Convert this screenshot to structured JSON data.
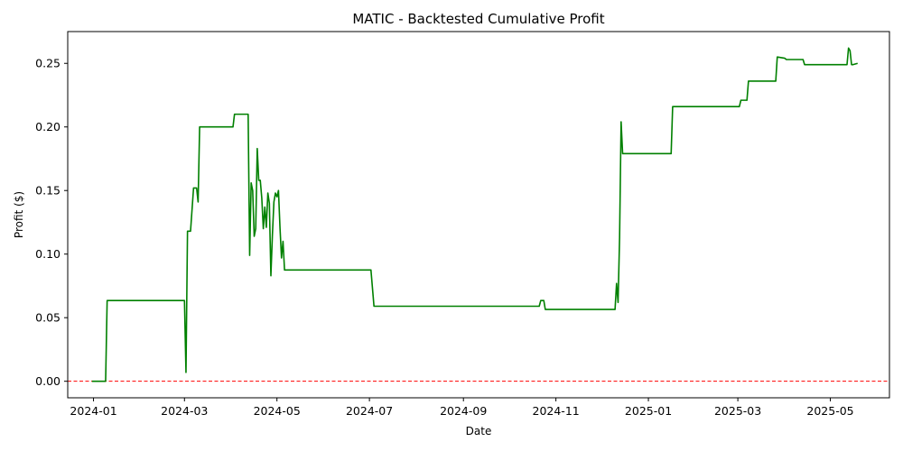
{
  "chart_data": {
    "type": "line",
    "title": "MATIC - Backtested Cumulative Profit",
    "xlabel": "Date",
    "ylabel": "Profit ($)",
    "xlim": [
      "2023-12-15",
      "2025-06-09"
    ],
    "ylim": [
      -0.013,
      0.275
    ],
    "x_ticks": [
      "2024-01",
      "2024-03",
      "2024-05",
      "2024-07",
      "2024-09",
      "2024-11",
      "2025-01",
      "2025-03",
      "2025-05"
    ],
    "y_ticks": [
      "0.00",
      "0.05",
      "0.10",
      "0.15",
      "0.20",
      "0.25"
    ],
    "grid": false,
    "series": [
      {
        "color": "#008000",
        "x": [
          "2023-12-31",
          "2024-01-09",
          "2024-01-10",
          "2024-03-01",
          "2024-03-02",
          "2024-03-03",
          "2024-03-05",
          "2024-03-07",
          "2024-03-09",
          "2024-03-10",
          "2024-03-11",
          "2024-04-02",
          "2024-04-03",
          "2024-04-12",
          "2024-04-13",
          "2024-04-14",
          "2024-04-15",
          "2024-04-16",
          "2024-04-17",
          "2024-04-18",
          "2024-04-19",
          "2024-04-20",
          "2024-04-21",
          "2024-04-22",
          "2024-04-23",
          "2024-04-24",
          "2024-04-25",
          "2024-04-26",
          "2024-04-27",
          "2024-04-28",
          "2024-04-29",
          "2024-04-30",
          "2024-05-01",
          "2024-05-02",
          "2024-05-03",
          "2024-05-04",
          "2024-05-05",
          "2024-05-06",
          "2024-05-07",
          "2024-05-08",
          "2024-05-09",
          "2024-07-02",
          "2024-07-04",
          "2024-10-21",
          "2024-10-22",
          "2024-10-24",
          "2024-10-25",
          "2024-12-10",
          "2024-12-11",
          "2024-12-12",
          "2024-12-13",
          "2024-12-14",
          "2024-12-15",
          "2024-12-16",
          "2024-12-17",
          "2025-01-16",
          "2025-01-17",
          "2025-03-02",
          "2025-03-03",
          "2025-03-07",
          "2025-03-08",
          "2025-03-26",
          "2025-03-27",
          "2025-04-01",
          "2025-04-02",
          "2025-04-13",
          "2025-04-14",
          "2025-05-12",
          "2025-05-13",
          "2025-05-14",
          "2025-05-15",
          "2025-05-16",
          "2025-05-19"
        ],
        "y": [
          0.0,
          0.0,
          0.0635,
          0.0635,
          0.007,
          0.118,
          0.118,
          0.152,
          0.152,
          0.141,
          0.2,
          0.2,
          0.21,
          0.21,
          0.099,
          0.156,
          0.15,
          0.114,
          0.12,
          0.183,
          0.158,
          0.158,
          0.144,
          0.12,
          0.137,
          0.121,
          0.148,
          0.14,
          0.083,
          0.115,
          0.141,
          0.148,
          0.145,
          0.15,
          0.121,
          0.097,
          0.11,
          0.0875,
          0.0875,
          0.0875,
          0.0875,
          0.0875,
          0.059,
          0.059,
          0.0635,
          0.0635,
          0.0565,
          0.0565,
          0.077,
          0.062,
          0.113,
          0.204,
          0.179,
          0.179,
          0.179,
          0.179,
          0.216,
          0.216,
          0.221,
          0.221,
          0.236,
          0.236,
          0.255,
          0.254,
          0.253,
          0.253,
          0.249,
          0.249,
          0.262,
          0.26,
          0.249,
          0.249,
          0.25
        ]
      }
    ],
    "reference_line": {
      "y": 0.0,
      "color": "#ff0000",
      "style": "dashed"
    }
  }
}
